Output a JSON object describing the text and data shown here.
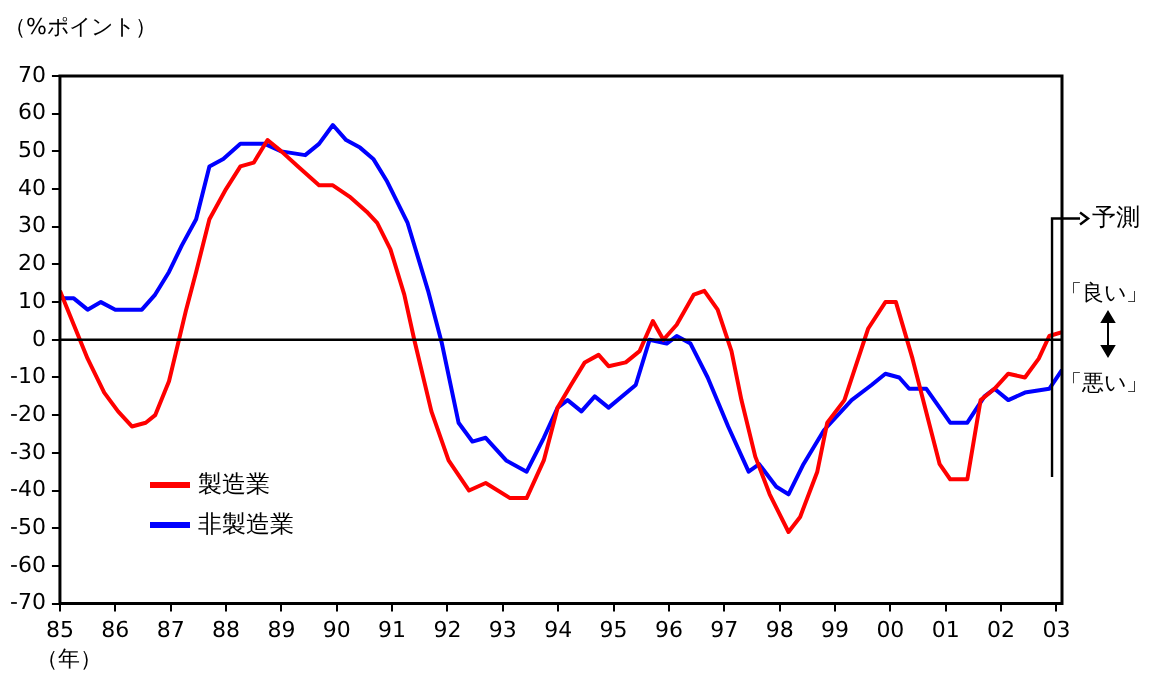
{
  "chart_data": {
    "type": "line",
    "ylabel": "（%ポイント）",
    "xlabel": "（年）",
    "xlim": [
      1985,
      2003.1
    ],
    "ylim": [
      -70,
      70
    ],
    "xticks": [
      {
        "value": 1985,
        "label": "85"
      },
      {
        "value": 1986,
        "label": "86"
      },
      {
        "value": 1987,
        "label": "87"
      },
      {
        "value": 1988,
        "label": "88"
      },
      {
        "value": 1989,
        "label": "89"
      },
      {
        "value": 1990,
        "label": "90"
      },
      {
        "value": 1991,
        "label": "91"
      },
      {
        "value": 1992,
        "label": "92"
      },
      {
        "value": 1993,
        "label": "93"
      },
      {
        "value": 1994,
        "label": "94"
      },
      {
        "value": 1995,
        "label": "95"
      },
      {
        "value": 1996,
        "label": "96"
      },
      {
        "value": 1997,
        "label": "97"
      },
      {
        "value": 1998,
        "label": "98"
      },
      {
        "value": 1999,
        "label": "99"
      },
      {
        "value": 2000,
        "label": "00"
      },
      {
        "value": 2001,
        "label": "01"
      },
      {
        "value": 2002,
        "label": "02"
      },
      {
        "value": 2003,
        "label": "03"
      }
    ],
    "yticks": [
      70,
      60,
      50,
      40,
      30,
      20,
      10,
      0,
      -10,
      -20,
      -30,
      -40,
      -50,
      -60,
      -70
    ],
    "legend": "bottom left",
    "grid": false,
    "series": [
      {
        "name": "製造業",
        "color": "#ff0000",
        "x": [
          1985.0,
          1985.25,
          1985.5,
          1985.8,
          1986.05,
          1986.3,
          1986.55,
          1986.72,
          1986.97,
          1987.15,
          1987.28,
          1987.46,
          1987.7,
          1988.0,
          1988.26,
          1988.5,
          1988.75,
          1989.0,
          1989.3,
          1989.68,
          1989.93,
          1990.23,
          1990.54,
          1990.73,
          1990.97,
          1991.22,
          1991.4,
          1991.71,
          1992.02,
          1992.39,
          1992.69,
          1993.13,
          1993.43,
          1993.74,
          1993.99,
          1994.23,
          1994.48,
          1994.73,
          1994.91,
          1995.22,
          1995.47,
          1995.71,
          1995.9,
          1996.14,
          1996.45,
          1996.64,
          1996.88,
          1997.13,
          1997.31,
          1997.56,
          1997.82,
          1998.16,
          1998.37,
          1998.68,
          1998.86,
          1999.17,
          1999.6,
          1999.91,
          2000.1,
          2000.4,
          2000.89,
          2001.08,
          2001.39,
          2001.63,
          2001.88,
          2002.13,
          2002.43,
          2002.68,
          2002.87,
          2003.1
        ],
        "values": [
          13,
          4,
          -5,
          -14,
          -19,
          -23,
          -22,
          -20,
          -11,
          0,
          8,
          18,
          32,
          40,
          46,
          47,
          53,
          50,
          46,
          41,
          41,
          38,
          34,
          31,
          24,
          12,
          0,
          -19,
          -32,
          -40,
          -38,
          -42,
          -42,
          -32,
          -18,
          -12,
          -6,
          -4,
          -7,
          -6,
          -3,
          5,
          0,
          4,
          12,
          13,
          8,
          -3,
          -16,
          -31,
          -41,
          -51,
          -47,
          -35,
          -22,
          -16,
          3,
          10,
          10,
          -5,
          -33,
          -37,
          -37,
          -16,
          -13,
          -9,
          -10,
          -5,
          1,
          2
        ]
      },
      {
        "name": "非製造業",
        "color": "#0000ff",
        "x": [
          1985.0,
          1985.25,
          1985.5,
          1985.74,
          1986.0,
          1986.48,
          1986.72,
          1986.97,
          1987.2,
          1987.46,
          1987.7,
          1987.95,
          1988.26,
          1988.7,
          1989.0,
          1989.43,
          1989.68,
          1989.93,
          1990.17,
          1990.42,
          1990.66,
          1990.91,
          1991.28,
          1991.65,
          1991.9,
          1992.2,
          1992.45,
          1992.69,
          1993.06,
          1993.43,
          1993.74,
          1993.99,
          1994.17,
          1994.42,
          1994.66,
          1994.91,
          1995.4,
          1995.65,
          1995.96,
          1996.14,
          1996.39,
          1996.7,
          1997.07,
          1997.44,
          1997.63,
          1997.94,
          1998.16,
          1998.43,
          1998.8,
          1999.3,
          1999.66,
          1999.91,
          2000.16,
          2000.34,
          2000.65,
          2001.08,
          2001.39,
          2001.7,
          2001.88,
          2002.13,
          2002.43,
          2002.87,
          2003.1
        ],
        "values": [
          11,
          11,
          8,
          10,
          8,
          8,
          12,
          18,
          25,
          32,
          46,
          48,
          52,
          52,
          50,
          49,
          52,
          57,
          53,
          51,
          48,
          42,
          31,
          13,
          -1,
          -22,
          -27,
          -26,
          -32,
          -35,
          -26,
          -18,
          -16,
          -19,
          -15,
          -18,
          -12,
          0,
          -1,
          1,
          -1,
          -10,
          -23,
          -35,
          -33,
          -39,
          -41,
          -33,
          -24,
          -16,
          -12,
          -9,
          -10,
          -13,
          -13,
          -22,
          -22,
          -15,
          -13,
          -16,
          -14,
          -13,
          -8
        ]
      }
    ],
    "ref_lines": [
      {
        "axis": "y",
        "value": 0,
        "color": "#000000"
      },
      {
        "axis": "x",
        "value": 2002.92,
        "label": "予測",
        "color": "#000000"
      }
    ],
    "annotations": [
      "「良い」",
      "「悪い」"
    ]
  }
}
